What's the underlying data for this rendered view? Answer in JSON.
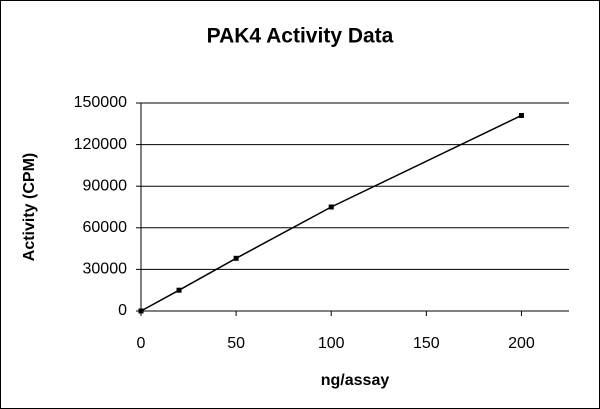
{
  "chart_data": {
    "type": "line",
    "title": "PAK4 Activity Data",
    "x_label": "ng/assay",
    "y_label": "Activity (CPM)",
    "x": [
      0,
      20,
      50,
      100,
      200
    ],
    "series": [
      {
        "name": "PAK4",
        "color": "#000000",
        "values": [
          0,
          15000,
          38000,
          75000,
          141000
        ]
      }
    ],
    "xlim": [
      0,
      225
    ],
    "xticks": [
      0,
      50,
      100,
      150,
      200
    ],
    "ylim": [
      0,
      150000
    ],
    "yticks": [
      0,
      30000,
      60000,
      90000,
      120000,
      150000
    ],
    "grid": true
  }
}
